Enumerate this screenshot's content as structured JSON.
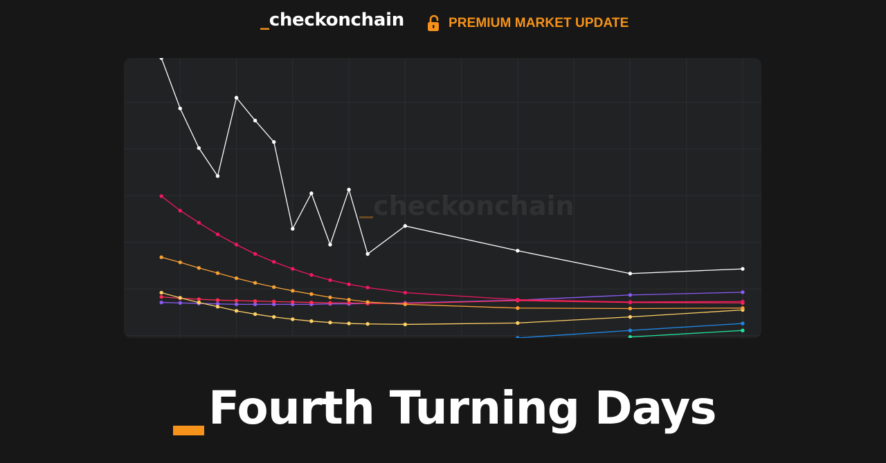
{
  "header": {
    "brand_prefix": "_",
    "brand_name": "checkonchain",
    "premium_label": "PREMIUM MARKET UPDATE",
    "lock_icon": "unlocked-padlock-icon"
  },
  "headline": {
    "title": "Fourth Turning Days"
  },
  "colors": {
    "background": "#171717",
    "panel": "#212224",
    "grid": "#2c2e31",
    "accent": "#f7931a",
    "text": "#ffffff"
  },
  "chart_data": {
    "type": "line",
    "title": "",
    "xlabel": "",
    "ylabel": "",
    "grid": true,
    "legend": "none",
    "watermark": "_checkonchain",
    "xlim": [
      -2,
      32
    ],
    "ylim": [
      0,
      6
    ],
    "series": [
      {
        "color": "#ffffff",
        "points": [
          [
            0,
            6.0
          ],
          [
            1,
            4.92
          ],
          [
            2,
            4.07
          ],
          [
            3,
            3.47
          ],
          [
            4,
            5.15
          ],
          [
            5,
            4.66
          ],
          [
            6,
            4.2
          ],
          [
            7,
            2.34
          ],
          [
            8,
            3.1
          ],
          [
            9,
            2.0
          ],
          [
            10,
            3.18
          ],
          [
            11,
            1.8
          ],
          [
            13,
            2.4
          ],
          [
            19,
            1.87
          ],
          [
            25,
            1.38
          ],
          [
            31,
            1.48
          ]
        ]
      },
      {
        "color": "#f0185f",
        "points": [
          [
            0,
            3.04
          ],
          [
            1,
            2.73
          ],
          [
            2,
            2.47
          ],
          [
            3,
            2.22
          ],
          [
            4,
            2.0
          ],
          [
            5,
            1.8
          ],
          [
            6,
            1.63
          ],
          [
            7,
            1.48
          ],
          [
            8,
            1.35
          ],
          [
            9,
            1.24
          ],
          [
            10,
            1.15
          ],
          [
            11,
            1.08
          ],
          [
            13,
            0.97
          ],
          [
            19,
            0.82
          ],
          [
            25,
            0.77
          ],
          [
            31,
            0.78
          ]
        ]
      },
      {
        "color": "#f7a035",
        "points": [
          [
            0,
            1.73
          ],
          [
            1,
            1.62
          ],
          [
            2,
            1.5
          ],
          [
            3,
            1.39
          ],
          [
            4,
            1.28
          ],
          [
            5,
            1.18
          ],
          [
            6,
            1.09
          ],
          [
            7,
            1.01
          ],
          [
            8,
            0.94
          ],
          [
            9,
            0.87
          ],
          [
            10,
            0.82
          ],
          [
            11,
            0.77
          ],
          [
            13,
            0.72
          ],
          [
            19,
            0.64
          ],
          [
            25,
            0.63
          ],
          [
            31,
            0.64
          ]
        ]
      },
      {
        "color": "#ffd166",
        "points": [
          [
            0,
            0.97
          ],
          [
            1,
            0.86
          ],
          [
            2,
            0.76
          ],
          [
            3,
            0.67
          ],
          [
            4,
            0.58
          ],
          [
            5,
            0.51
          ],
          [
            6,
            0.45
          ],
          [
            7,
            0.4
          ],
          [
            8,
            0.36
          ],
          [
            9,
            0.33
          ],
          [
            10,
            0.31
          ],
          [
            11,
            0.3
          ],
          [
            13,
            0.29
          ],
          [
            19,
            0.32
          ],
          [
            25,
            0.45
          ],
          [
            31,
            0.6
          ]
        ]
      },
      {
        "color": "#ff2d55",
        "points": [
          [
            0,
            0.88
          ],
          [
            1,
            0.85
          ],
          [
            2,
            0.83
          ],
          [
            3,
            0.81
          ],
          [
            4,
            0.8
          ],
          [
            5,
            0.79
          ],
          [
            6,
            0.78
          ],
          [
            7,
            0.77
          ],
          [
            8,
            0.76
          ],
          [
            9,
            0.75
          ],
          [
            10,
            0.75
          ],
          [
            11,
            0.74
          ],
          [
            13,
            0.74
          ],
          [
            19,
            0.8
          ],
          [
            25,
            0.76
          ],
          [
            31,
            0.75
          ]
        ]
      },
      {
        "color": "#8b5cf6",
        "points": [
          [
            0,
            0.76
          ],
          [
            1,
            0.75
          ],
          [
            2,
            0.74
          ],
          [
            3,
            0.73
          ],
          [
            4,
            0.72
          ],
          [
            5,
            0.72
          ],
          [
            6,
            0.72
          ],
          [
            7,
            0.72
          ],
          [
            8,
            0.72
          ],
          [
            9,
            0.73
          ],
          [
            10,
            0.73
          ],
          [
            11,
            0.74
          ],
          [
            13,
            0.75
          ],
          [
            19,
            0.81
          ],
          [
            25,
            0.92
          ],
          [
            31,
            0.98
          ]
        ]
      },
      {
        "color": "#1e88e5",
        "points": [
          [
            19,
            0.0
          ],
          [
            25,
            0.16
          ],
          [
            31,
            0.31
          ]
        ]
      },
      {
        "color": "#22e39a",
        "points": [
          [
            25,
            0.02
          ],
          [
            31,
            0.16
          ]
        ]
      }
    ]
  }
}
